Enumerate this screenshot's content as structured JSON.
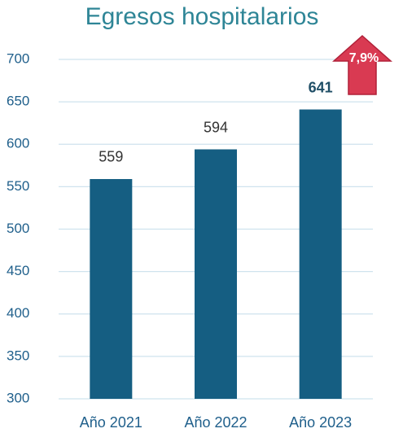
{
  "chart_data": {
    "type": "bar",
    "title": "Egresos hospitalarios",
    "categories": [
      "Año 2021",
      "Año 2022",
      "Año 2023"
    ],
    "values": [
      559,
      594,
      641
    ],
    "color": "#155e82",
    "ylim": [
      300,
      700
    ],
    "yticks": [
      300,
      350,
      400,
      450,
      500,
      550,
      600,
      650,
      700
    ],
    "grid": true,
    "annotation": "7,9%"
  }
}
